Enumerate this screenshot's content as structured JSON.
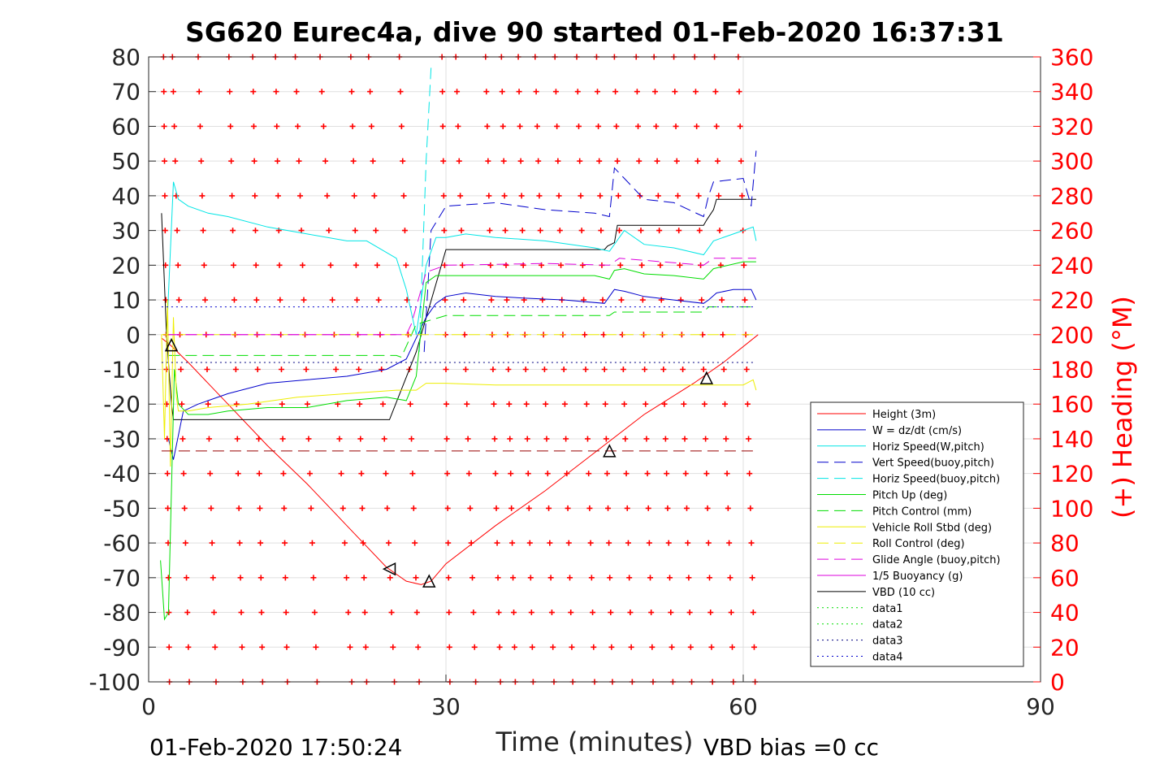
{
  "chart_data": {
    "type": "line",
    "title": "SG620 Eurec4a, dive 90 started 01-Feb-2020 16:37:31",
    "xlabel": "Time (minutes)",
    "ylabel_right": "(+) Heading (°M)",
    "footer_left": "01-Feb-2020 17:50:24",
    "footer_right": "VBD bias =0 cc",
    "xlim": [
      0,
      90
    ],
    "ylim": [
      -100,
      80
    ],
    "ylim_right": [
      0,
      360
    ],
    "xticks": [
      0,
      30,
      60,
      90
    ],
    "yticks": [
      80,
      70,
      60,
      50,
      40,
      30,
      20,
      10,
      0,
      -10,
      -20,
      -30,
      -40,
      -50,
      -60,
      -70,
      -80,
      -90,
      -100
    ],
    "yticks_right": [
      360,
      340,
      320,
      300,
      280,
      260,
      240,
      220,
      200,
      180,
      160,
      140,
      120,
      100,
      80,
      60,
      40,
      20,
      0
    ],
    "grid": true,
    "legend_position": "lower-right",
    "colors": {
      "height": "#ff0000",
      "w": "#0000cc",
      "horiz": "#00e5e5",
      "pitch": "#00dd00",
      "roll": "#eeee00",
      "glide": "#dd00dd",
      "vbd": "#000000",
      "heading": "#ff0000"
    },
    "legend": [
      {
        "label": "Height (3m)",
        "color": "#ff0000",
        "style": "solid"
      },
      {
        "label": "W = dz/dt (cm/s)",
        "color": "#0000cc",
        "style": "solid"
      },
      {
        "label": "Horiz Speed(W,pitch)",
        "color": "#00e5e5",
        "style": "solid"
      },
      {
        "label": "Vert Speed(buoy,pitch)",
        "color": "#0000cc",
        "style": "dash"
      },
      {
        "label": "Horiz Speed(buoy,pitch)",
        "color": "#00e5e5",
        "style": "dash"
      },
      {
        "label": "Pitch Up (deg)",
        "color": "#00dd00",
        "style": "solid"
      },
      {
        "label": "Pitch Control (mm)",
        "color": "#00dd00",
        "style": "dash"
      },
      {
        "label": "Vehicle Roll Stbd (deg)",
        "color": "#eeee00",
        "style": "solid"
      },
      {
        "label": "Roll Control (deg)",
        "color": "#eeee00",
        "style": "dash"
      },
      {
        "label": "Glide Angle (buoy,pitch)",
        "color": "#dd00dd",
        "style": "dash"
      },
      {
        "label": "1/5 Buoyancy (g)",
        "color": "#dd00dd",
        "style": "solid"
      },
      {
        "label": "VBD (10 cc)",
        "color": "#000000",
        "style": "solid"
      },
      {
        "label": "data1",
        "color": "#00dd00",
        "style": "dot"
      },
      {
        "label": "data2",
        "color": "#00dd00",
        "style": "dot"
      },
      {
        "label": "data3",
        "color": "#000080",
        "style": "dot"
      },
      {
        "label": "data4",
        "color": "#0000cc",
        "style": "dot"
      }
    ],
    "series": [
      {
        "key": "height",
        "color": "#ff0000",
        "style": "solid",
        "width": 1,
        "x": [
          1.3,
          2.2,
          4,
          8,
          12,
          16,
          20,
          24,
          26,
          27.5,
          28.5,
          30,
          35,
          40,
          45,
          50,
          55,
          58,
          61.5
        ],
        "y": [
          -1,
          -3,
          -8,
          -20,
          -32,
          -43,
          -55,
          -67,
          -71,
          -72,
          -71,
          -66,
          -55,
          -45,
          -34,
          -23,
          -14,
          -8,
          0
        ]
      },
      {
        "key": "vbd",
        "color": "#000000",
        "style": "solid",
        "width": 1,
        "x": [
          1.3,
          1.8,
          2.3,
          2.5,
          10,
          20,
          24.3,
          27,
          30,
          46,
          46.3,
          47,
          47.3,
          56,
          56.3,
          57,
          57.3,
          60,
          61.3
        ],
        "y": [
          35,
          0,
          -20,
          -24.5,
          -24.5,
          -24.5,
          -24.5,
          -5,
          24.5,
          24.5,
          25.5,
          26.5,
          31.5,
          31.5,
          33,
          36,
          39,
          39,
          39
        ]
      },
      {
        "key": "w",
        "color": "#0000cc",
        "style": "solid",
        "width": 1,
        "x": [
          2,
          2.5,
          3.5,
          5,
          8,
          12,
          16,
          20,
          24,
          26,
          27,
          28,
          29,
          30,
          32,
          35,
          38,
          42,
          46,
          47,
          48,
          50,
          53,
          56,
          56.5,
          57.3,
          59,
          60.8,
          61.3
        ],
        "y": [
          -30,
          -36,
          -22,
          -20,
          -17,
          -14,
          -13,
          -12,
          -10,
          -7,
          -1,
          5,
          9,
          11,
          12,
          11,
          10.5,
          10,
          9,
          13,
          12.5,
          11,
          10,
          9,
          10,
          12,
          13,
          13,
          10
        ]
      },
      {
        "key": "vert_buoy",
        "color": "#0000cc",
        "style": "dash",
        "width": 1,
        "x": [
          27.8,
          28.5,
          30,
          35,
          40,
          45,
          46.5,
          47,
          48,
          50,
          53,
          56,
          56.5,
          57,
          60,
          60.8,
          61.3
        ],
        "y": [
          -5,
          30,
          37,
          38,
          36,
          35,
          34,
          48,
          45,
          39,
          38,
          34,
          40,
          44,
          45,
          37,
          53
        ]
      },
      {
        "key": "horiz",
        "color": "#00e5e5",
        "style": "solid",
        "width": 1,
        "x": [
          1.8,
          2.5,
          3,
          4,
          6,
          8,
          12,
          16,
          20,
          22,
          25,
          26,
          27,
          28,
          29,
          30,
          32,
          35,
          40,
          45,
          46.5,
          47,
          48,
          50,
          53,
          56,
          57,
          60,
          61,
          61.3
        ],
        "y": [
          -1,
          44,
          39,
          37,
          35,
          34,
          31,
          29,
          27,
          27,
          22,
          13,
          0,
          20,
          28,
          28,
          29,
          28,
          27,
          25,
          24,
          26,
          30,
          26,
          25,
          23,
          27,
          30,
          31,
          27
        ]
      },
      {
        "key": "horiz_buoy",
        "color": "#00e5e5",
        "style": "dash",
        "width": 1,
        "x": [
          27.3,
          28,
          28.5
        ],
        "y": [
          -5,
          50,
          77
        ]
      },
      {
        "key": "pitch",
        "color": "#00dd00",
        "style": "solid",
        "width": 1,
        "x": [
          1.2,
          1.6,
          2,
          2.6,
          3,
          4,
          6,
          8,
          12,
          16,
          20,
          24,
          26,
          27,
          28,
          29,
          30,
          35,
          40,
          45,
          46.5,
          47,
          48,
          50,
          53,
          56,
          57,
          60,
          61.3
        ],
        "y": [
          -65,
          -82,
          -80,
          -10,
          -20,
          -23,
          -23,
          -22,
          -21,
          -21,
          -19,
          -18,
          -19,
          -12,
          15,
          17,
          17,
          17,
          17,
          17,
          16,
          18.5,
          19,
          17.5,
          17,
          16,
          19,
          21,
          21
        ]
      },
      {
        "key": "pitch_ctrl",
        "color": "#00dd00",
        "style": "dash",
        "width": 1,
        "x": [
          2,
          25,
          25.5,
          27,
          30,
          46.5,
          47,
          56,
          56.5,
          61.3
        ],
        "y": [
          -6,
          -6,
          -6.5,
          3,
          5.5,
          5.5,
          6.5,
          6.5,
          8,
          8
        ]
      },
      {
        "key": "roll",
        "color": "#eeee00",
        "style": "solid",
        "width": 1,
        "x": [
          1.3,
          1.6,
          1.9,
          2.2,
          2.5,
          2.8,
          3,
          4,
          6,
          10,
          15,
          20,
          25,
          27,
          28,
          30,
          35,
          40,
          45,
          50,
          55,
          60,
          61,
          61.3
        ],
        "y": [
          0,
          -30,
          10,
          -38,
          5,
          -18,
          -22,
          -22,
          -21,
          -20,
          -18,
          -17,
          -16,
          -16,
          -14,
          -14,
          -14.5,
          -14.5,
          -14.5,
          -14.5,
          -14.5,
          -14.5,
          -13,
          -16
        ]
      },
      {
        "key": "roll_ctrl",
        "color": "#eeee00",
        "style": "dash",
        "width": 1,
        "x": [
          1.3,
          61.3
        ],
        "y": [
          0,
          0
        ]
      },
      {
        "key": "glide",
        "color": "#dd00dd",
        "style": "dash",
        "width": 1,
        "x": [
          2,
          26,
          26.5,
          28,
          30,
          40,
          46.5,
          47.5,
          56,
          57,
          61.3
        ],
        "y": [
          0,
          0,
          3,
          18,
          20,
          20.5,
          20,
          22,
          20,
          22,
          22
        ]
      },
      {
        "key": "buoyancy",
        "color": "#dd00dd",
        "style": "dash",
        "width": 1,
        "x": [
          2,
          25
        ],
        "y": [
          0,
          0
        ]
      },
      {
        "key": "data3",
        "color": "#000080",
        "style": "dot",
        "width": 1,
        "x": [
          1.3,
          61.3
        ],
        "y": [
          -8,
          -8
        ]
      },
      {
        "key": "data4",
        "color": "#0000cc",
        "style": "dot",
        "width": 1,
        "x": [
          1.3,
          61.3
        ],
        "y": [
          8,
          8
        ]
      },
      {
        "key": "darkred_ref",
        "color": "#990000",
        "style": "dash",
        "width": 1,
        "x": [
          1.3,
          61.3
        ],
        "y": [
          -33.5,
          -33.5
        ]
      }
    ],
    "heading_tracks": [
      {
        "t0": 1.5,
        "t1": 2.1
      },
      {
        "t0": 2.4,
        "t1": 4.1
      },
      {
        "t0": 5.0,
        "t1": 6.8
      },
      {
        "t0": 8.1,
        "t1": 9.5
      },
      {
        "t0": 10.5,
        "t1": 11.5
      },
      {
        "t0": 12.8,
        "t1": 14.0
      },
      {
        "t0": 14.8,
        "t1": 17.0
      },
      {
        "t0": 17.3,
        "t1": 20.5
      },
      {
        "t0": 20.4,
        "t1": 22.0
      },
      {
        "t0": 22.2,
        "t1": 24.8
      },
      {
        "t0": 25.3,
        "t1": 27.3
      },
      {
        "t0": 29.6,
        "t1": 30.4
      },
      {
        "t0": 31.0,
        "t1": 33.0
      },
      {
        "t0": 34.0,
        "t1": 35.5
      },
      {
        "t0": 35.6,
        "t1": 37.0
      },
      {
        "t0": 37.3,
        "t1": 38.8
      },
      {
        "t0": 39.0,
        "t1": 40.9
      },
      {
        "t0": 41.0,
        "t1": 42.8
      },
      {
        "t0": 43.2,
        "t1": 45.0
      },
      {
        "t0": 45.2,
        "t1": 46.8
      },
      {
        "t0": 47.0,
        "t1": 48.8
      },
      {
        "t0": 49.2,
        "t1": 50.9
      },
      {
        "t0": 51.0,
        "t1": 52.9
      },
      {
        "t0": 53.0,
        "t1": 54.8
      },
      {
        "t0": 55.1,
        "t1": 56.9
      },
      {
        "t0": 57.1,
        "t1": 59.0
      },
      {
        "t0": 59.5,
        "t1": 61.2
      }
    ],
    "markers": [
      {
        "type": "triangle-up",
        "x": 2.3,
        "y": -3
      },
      {
        "type": "triangle-left",
        "x": 24.3,
        "y": -67.5
      },
      {
        "type": "triangle-up",
        "x": 28.3,
        "y": -71
      },
      {
        "type": "triangle-up",
        "x": 46.5,
        "y": -33.5
      },
      {
        "type": "triangle-up",
        "x": 56.3,
        "y": -12.5
      }
    ]
  }
}
